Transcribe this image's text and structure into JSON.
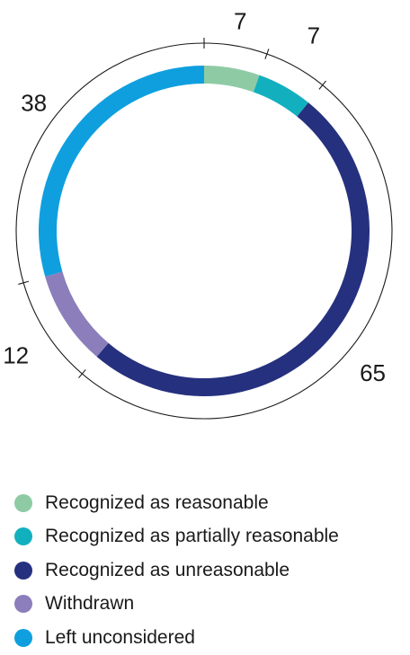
{
  "chart_data": {
    "type": "pie",
    "style": "donut",
    "start": "top",
    "direction": "clockwise",
    "title": "",
    "slices": [
      {
        "name": "Recognized as reasonable",
        "value": 7,
        "color": "#8ecba4"
      },
      {
        "name": "Recognized as partially reasonable",
        "value": 7,
        "color": "#12b0bf"
      },
      {
        "name": "Recognized as unreasonable",
        "value": 65,
        "color": "#25307e"
      },
      {
        "name": "Withdrawn",
        "value": 12,
        "color": "#8b7ebb"
      },
      {
        "name": "Left unconsidered",
        "value": 38,
        "color": "#0f9fdf"
      }
    ],
    "legend_position": "bottom"
  }
}
